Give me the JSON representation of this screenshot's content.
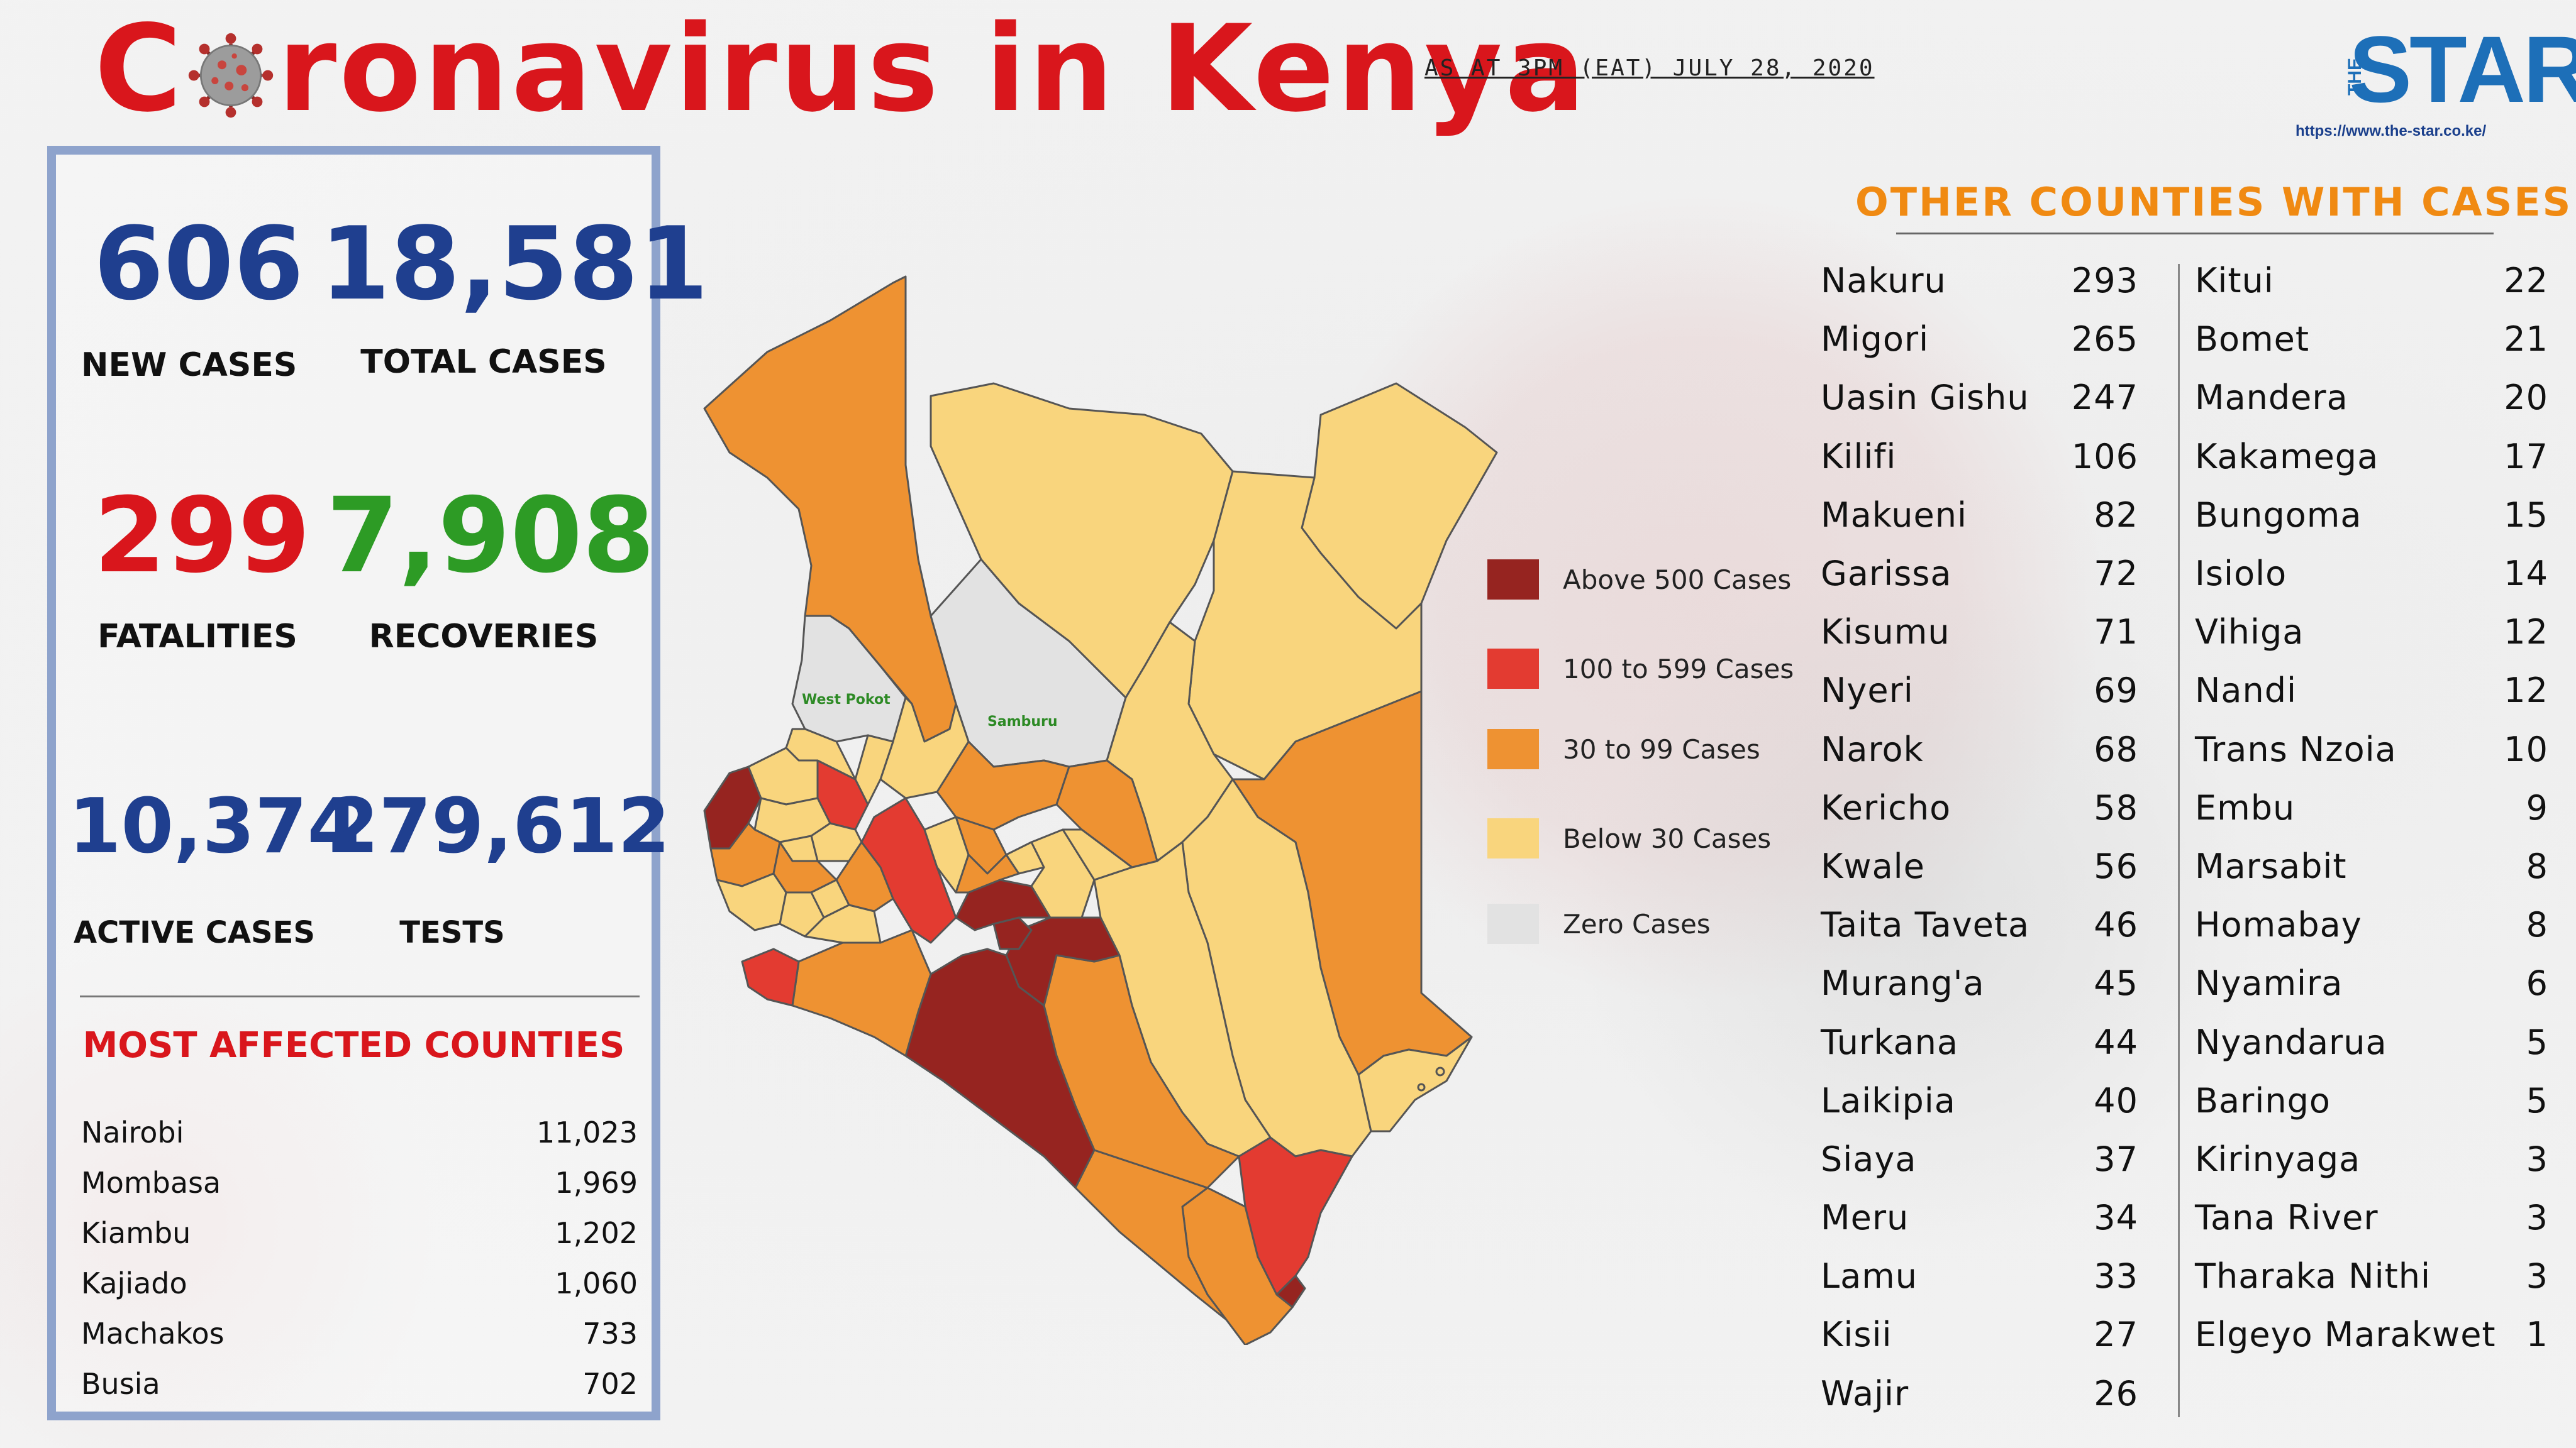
{
  "header": {
    "title_prefix": "C",
    "title_suffix": "ronavirus in Kenya",
    "as_at": "AS AT 3PM (EAT) JULY 28, 2020",
    "logo_text": "STAR",
    "logo_the": "THE",
    "logo_url": "https://www.the-star.co.ke/"
  },
  "stats": {
    "new_cases": "606",
    "new_cases_label": "NEW CASES",
    "total_cases": "18,581",
    "total_cases_label": "TOTAL CASES",
    "fatalities": "299",
    "fatalities_label": "FATALITIES",
    "recoveries": "7,908",
    "recoveries_label": "RECOVERIES",
    "active_cases": "10,374",
    "active_cases_label": "ACTIVE CASES",
    "tests": "279,612",
    "tests_label": "TESTS"
  },
  "most_affected": {
    "heading": "MOST AFFECTED COUNTIES",
    "rows": [
      {
        "county": "Nairobi",
        "cases": "11,023"
      },
      {
        "county": "Mombasa",
        "cases": "1,969"
      },
      {
        "county": "Kiambu",
        "cases": "1,202"
      },
      {
        "county": "Kajiado",
        "cases": "1,060"
      },
      {
        "county": "Machakos",
        "cases": "733"
      },
      {
        "county": "Busia",
        "cases": "702"
      }
    ]
  },
  "map": {
    "labels": {
      "west_pokot": "West Pokot",
      "samburu": "Samburu"
    },
    "colors": {
      "above_500": "#962420",
      "100_599": "#e33b31",
      "30_99": "#ee9232",
      "below_30": "#f9d57d",
      "zero": "#e2e2e2",
      "border": "#555555"
    }
  },
  "legend": [
    {
      "label": "Above 500 Cases",
      "color": "#962420"
    },
    {
      "label": "100 to 599 Cases",
      "color": "#e33b31"
    },
    {
      "label": "30 to 99 Cases",
      "color": "#ee9232"
    },
    {
      "label": "Below 30 Cases",
      "color": "#f9d57d"
    },
    {
      "label": "Zero Cases",
      "color": "#e2e2e2"
    }
  ],
  "other_counties": {
    "heading": "OTHER COUNTIES WITH CASES",
    "col1": [
      {
        "county": "Nakuru",
        "cases": "293"
      },
      {
        "county": "Migori",
        "cases": "265"
      },
      {
        "county": "Uasin Gishu",
        "cases": "247"
      },
      {
        "county": "Kilifi",
        "cases": "106"
      },
      {
        "county": "Makueni",
        "cases": "82"
      },
      {
        "county": "Garissa",
        "cases": "72"
      },
      {
        "county": "Kisumu",
        "cases": "71"
      },
      {
        "county": "Nyeri",
        "cases": "69"
      },
      {
        "county": "Narok",
        "cases": "68"
      },
      {
        "county": "Kericho",
        "cases": "58"
      },
      {
        "county": "Kwale",
        "cases": "56"
      },
      {
        "county": "Taita Taveta",
        "cases": "46"
      },
      {
        "county": "Murang'a",
        "cases": "45"
      },
      {
        "county": "Turkana",
        "cases": "44"
      },
      {
        "county": "Laikipia",
        "cases": "40"
      },
      {
        "county": "Siaya",
        "cases": "37"
      },
      {
        "county": "Meru",
        "cases": "34"
      },
      {
        "county": "Lamu",
        "cases": "33"
      },
      {
        "county": "Kisii",
        "cases": "27"
      },
      {
        "county": "Wajir",
        "cases": "26"
      }
    ],
    "col2": [
      {
        "county": "Kitui",
        "cases": "22"
      },
      {
        "county": "Bomet",
        "cases": "21"
      },
      {
        "county": "Mandera",
        "cases": "20"
      },
      {
        "county": "Kakamega",
        "cases": "17"
      },
      {
        "county": "Bungoma",
        "cases": "15"
      },
      {
        "county": "Isiolo",
        "cases": "14"
      },
      {
        "county": "Vihiga",
        "cases": "12"
      },
      {
        "county": "Nandi",
        "cases": "12"
      },
      {
        "county": "Trans Nzoia",
        "cases": "10"
      },
      {
        "county": "Embu",
        "cases": "9"
      },
      {
        "county": "Marsabit",
        "cases": "8"
      },
      {
        "county": "Homabay",
        "cases": "8"
      },
      {
        "county": "Nyamira",
        "cases": "6"
      },
      {
        "county": "Nyandarua",
        "cases": "5"
      },
      {
        "county": "Baringo",
        "cases": "5"
      },
      {
        "county": "Kirinyaga",
        "cases": "3"
      },
      {
        "county": "Tana River",
        "cases": "3"
      },
      {
        "county": "Tharaka Nithi",
        "cases": "3"
      },
      {
        "county": "Elgeyo Marakwet",
        "cases": "1"
      }
    ]
  }
}
